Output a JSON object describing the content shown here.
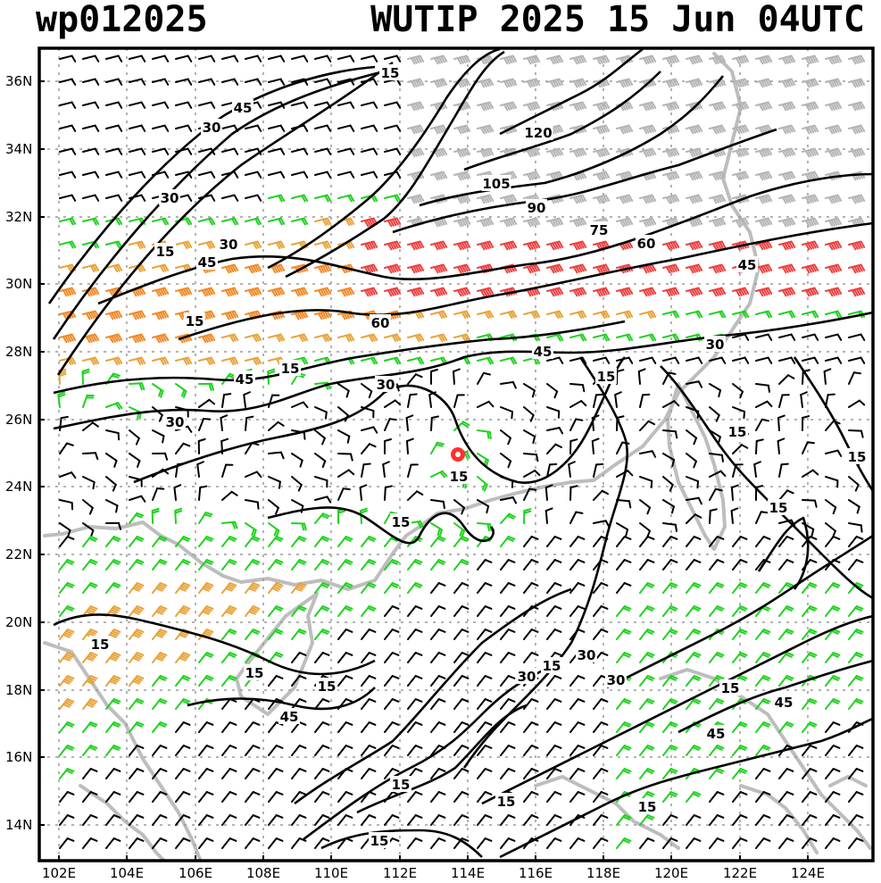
{
  "header": {
    "storm_id": "wp012025",
    "storm_title": "WUTIP 2025 15 Jun 04UTC"
  },
  "map": {
    "lat_labels": [
      "36N",
      "34N",
      "32N",
      "30N",
      "28N",
      "26N",
      "24N",
      "22N",
      "20N",
      "18N",
      "16N",
      "14N"
    ],
    "lon_labels": [
      "102E",
      "104E",
      "106E",
      "108E",
      "110E",
      "112E",
      "114E",
      "116E",
      "118E",
      "120E",
      "122E",
      "124E"
    ],
    "contour_labels": [
      "15",
      "45",
      "30",
      "30",
      "15",
      "30",
      "45",
      "15",
      "120",
      "105",
      "90",
      "75",
      "60",
      "45",
      "60",
      "45",
      "30",
      "45",
      "15",
      "30",
      "30",
      "15",
      "15",
      "15",
      "15",
      "15",
      "15",
      "15",
      "15",
      "15",
      "45",
      "30",
      "15",
      "30",
      "30",
      "15",
      "45",
      "45",
      "15",
      "15",
      "15",
      "15"
    ],
    "colors": {
      "land_outline": "#bdbdbd",
      "grid": "#9a9a9a",
      "contour": "#000000",
      "barb_calm": "#000000",
      "barb_15": "#1fd21f",
      "barb_30": "#e8a33a",
      "barb_45": "#f08a28",
      "barb_60": "#ec4040",
      "barb_90": "#b4b4b4",
      "storm_center": "#ff3030"
    }
  }
}
